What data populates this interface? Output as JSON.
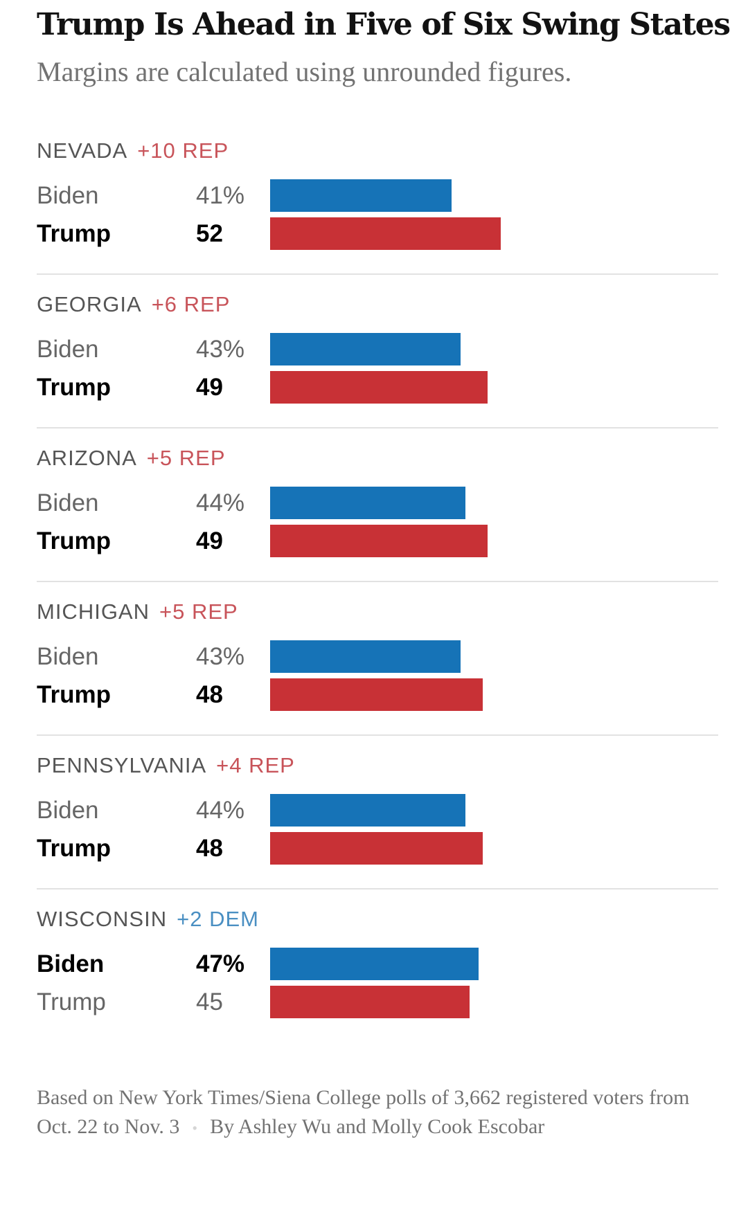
{
  "title": "Trump Is Ahead in Five of Six Swing States",
  "subtitle": "Margins are calculated using unrounded figures.",
  "colors": {
    "dem": "#1673b7",
    "rep": "#c83136",
    "dem_text": "#4a8fc2",
    "rep_text": "#c8545a"
  },
  "chart_data": {
    "type": "bar",
    "orientation": "horizontal",
    "title": "Trump Is Ahead in Five of Six Swing States",
    "subtitle": "Margins are calculated using unrounded figures.",
    "categories": [
      "NEVADA",
      "GEORGIA",
      "ARIZONA",
      "MICHIGAN",
      "PENNSYLVANIA",
      "WISCONSIN"
    ],
    "series": [
      {
        "name": "Biden",
        "color": "#1673b7",
        "values": [
          41,
          43,
          44,
          43,
          44,
          47
        ]
      },
      {
        "name": "Trump",
        "color": "#c83136",
        "values": [
          52,
          49,
          49,
          48,
          48,
          45
        ]
      }
    ],
    "xlim": [
      0,
      100
    ],
    "unit": "%",
    "grid": false,
    "legend": "none",
    "xlabel": "",
    "ylabel": ""
  },
  "sections": [
    {
      "state": "NEVADA",
      "margin": "+10 REP",
      "party": "rep",
      "rows": [
        {
          "name": "Biden",
          "label": "41%",
          "value": 41,
          "party": "dem",
          "winner": false
        },
        {
          "name": "Trump",
          "label": "52",
          "value": 52,
          "party": "rep",
          "winner": true
        }
      ]
    },
    {
      "state": "GEORGIA",
      "margin": "+6 REP",
      "party": "rep",
      "rows": [
        {
          "name": "Biden",
          "label": "43%",
          "value": 43,
          "party": "dem",
          "winner": false
        },
        {
          "name": "Trump",
          "label": "49",
          "value": 49,
          "party": "rep",
          "winner": true
        }
      ]
    },
    {
      "state": "ARIZONA",
      "margin": "+5 REP",
      "party": "rep",
      "rows": [
        {
          "name": "Biden",
          "label": "44%",
          "value": 44,
          "party": "dem",
          "winner": false
        },
        {
          "name": "Trump",
          "label": "49",
          "value": 49,
          "party": "rep",
          "winner": true
        }
      ]
    },
    {
      "state": "MICHIGAN",
      "margin": "+5 REP",
      "party": "rep",
      "rows": [
        {
          "name": "Biden",
          "label": "43%",
          "value": 43,
          "party": "dem",
          "winner": false
        },
        {
          "name": "Trump",
          "label": "48",
          "value": 48,
          "party": "rep",
          "winner": true
        }
      ]
    },
    {
      "state": "PENNSYLVANIA",
      "margin": "+4 REP",
      "party": "rep",
      "rows": [
        {
          "name": "Biden",
          "label": "44%",
          "value": 44,
          "party": "dem",
          "winner": false
        },
        {
          "name": "Trump",
          "label": "48",
          "value": 48,
          "party": "rep",
          "winner": true
        }
      ]
    },
    {
      "state": "WISCONSIN",
      "margin": "+2 DEM",
      "party": "dem",
      "rows": [
        {
          "name": "Biden",
          "label": "47%",
          "value": 47,
          "party": "dem",
          "winner": true
        },
        {
          "name": "Trump",
          "label": "45",
          "value": 45,
          "party": "rep",
          "winner": false
        }
      ]
    }
  ],
  "footnote": {
    "source": "Based on New York Times/Siena College polls of 3,662 registered voters from Oct. 22 to Nov. 3",
    "separator": "•",
    "byline": "By Ashley Wu and Molly Cook Escobar"
  }
}
